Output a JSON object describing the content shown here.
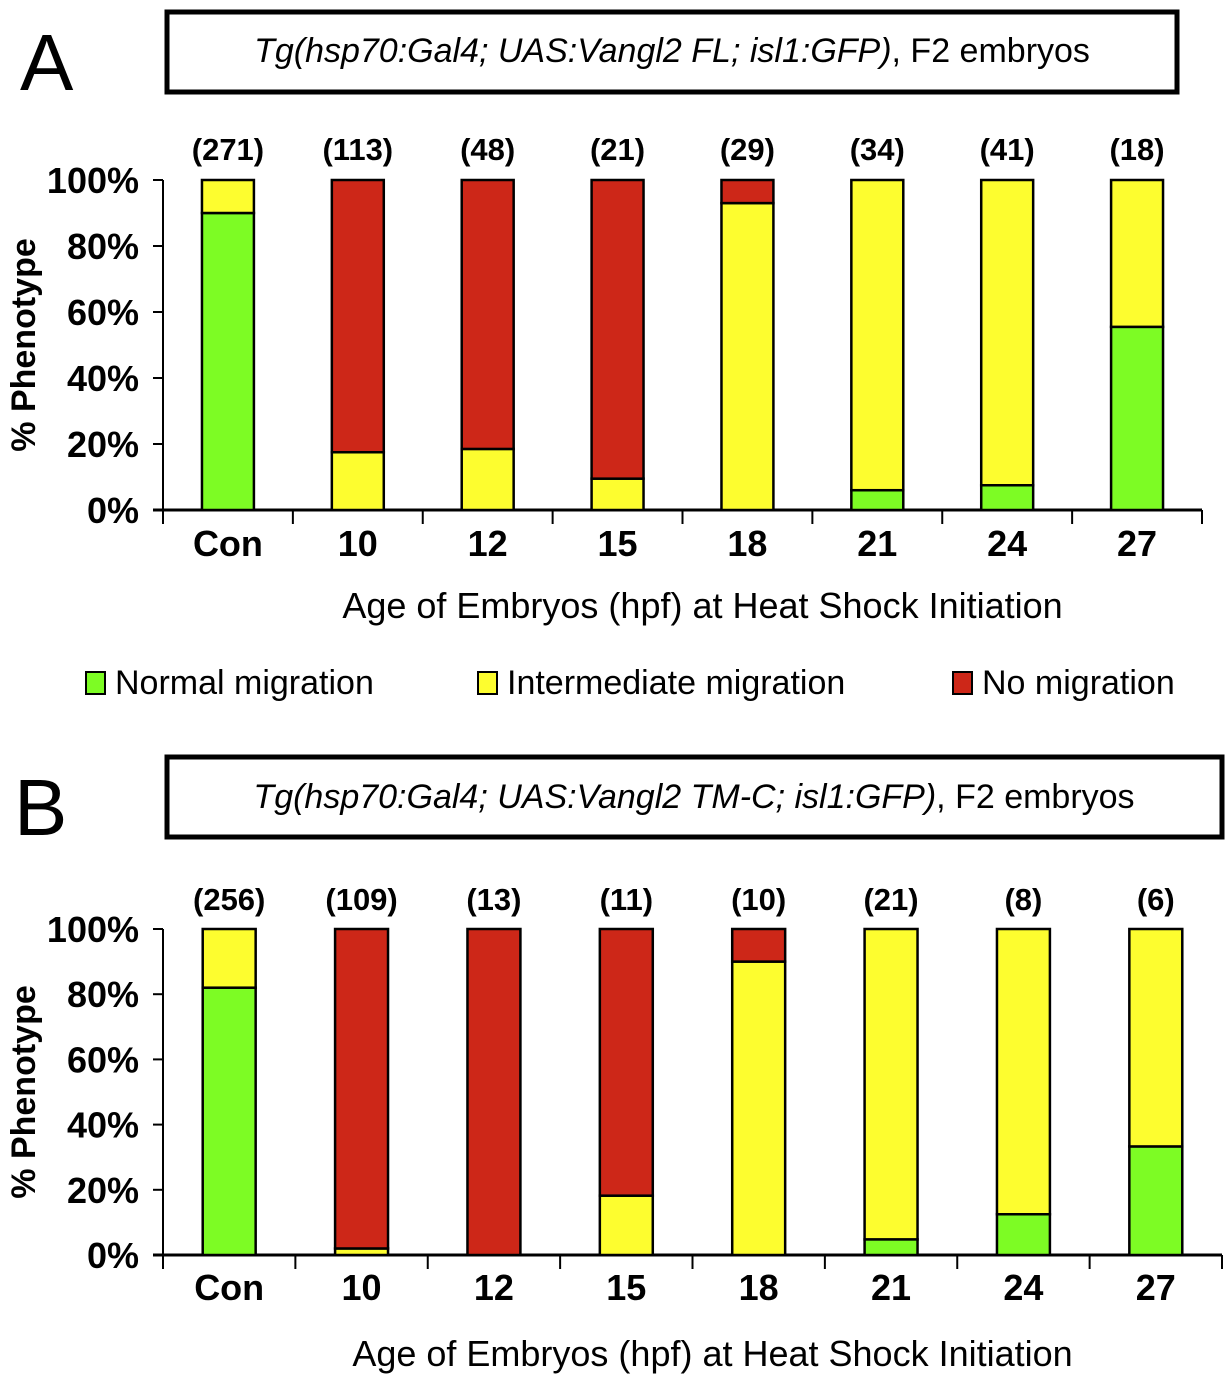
{
  "colors": {
    "normal": "#7dfc24",
    "intermediate": "#fdfd2f",
    "none": "#cd2718",
    "outline": "#000000"
  },
  "legend": {
    "items": [
      {
        "key": "normal",
        "label": "Normal migration"
      },
      {
        "key": "intermediate",
        "label": "Intermediate migration"
      },
      {
        "key": "none",
        "label": "No migration"
      }
    ]
  },
  "chart_data": [
    {
      "panel": "A",
      "type": "bar",
      "stacked": true,
      "title_italic": "Tg(hsp70:Gal4; UAS:Vangl2 FL; isl1:GFP)",
      "title_plain": ", F2 embryos",
      "xlabel": "Age of Embryos (hpf) at Heat Shock Initiation",
      "ylabel": "% Phenotype",
      "ylim": [
        0,
        100
      ],
      "yticks": [
        "0%",
        "20%",
        "40%",
        "60%",
        "80%",
        "100%"
      ],
      "grid": false,
      "categories": [
        "Con",
        "10",
        "12",
        "15",
        "18",
        "21",
        "24",
        "27"
      ],
      "n_labels": [
        "(271)",
        "(113)",
        "(48)",
        "(21)",
        "(29)",
        "(34)",
        "(41)",
        "(18)"
      ],
      "series": [
        {
          "name": "Normal migration",
          "key": "normal",
          "values": [
            90,
            0,
            0,
            0,
            0,
            6,
            7.5,
            55.5
          ]
        },
        {
          "name": "Intermediate migration",
          "key": "intermediate",
          "values": [
            10,
            17.5,
            18.5,
            9.5,
            93,
            94,
            92.5,
            44.5
          ]
        },
        {
          "name": "No migration",
          "key": "none",
          "values": [
            0,
            82.5,
            81.5,
            90.5,
            7,
            0,
            0,
            0
          ]
        }
      ],
      "legend": "bottom"
    },
    {
      "panel": "B",
      "type": "bar",
      "stacked": true,
      "title_italic": "Tg(hsp70:Gal4; UAS:Vangl2 TM-C; isl1:GFP)",
      "title_plain": ", F2 embryos",
      "xlabel": "Age of Embryos (hpf) at Heat Shock Initiation",
      "ylabel": "% Phenotype",
      "ylim": [
        0,
        100
      ],
      "yticks": [
        "0%",
        "20%",
        "40%",
        "60%",
        "80%",
        "100%"
      ],
      "grid": false,
      "categories": [
        "Con",
        "10",
        "12",
        "15",
        "18",
        "21",
        "24",
        "27"
      ],
      "n_labels": [
        "(256)",
        "(109)",
        "(13)",
        "(11)",
        "(10)",
        "(21)",
        "(8)",
        "(6)"
      ],
      "series": [
        {
          "name": "Normal migration",
          "key": "normal",
          "values": [
            82,
            0,
            0,
            0,
            0,
            4.8,
            12.5,
            33.3
          ]
        },
        {
          "name": "Intermediate migration",
          "key": "intermediate",
          "values": [
            18,
            2,
            0,
            18.2,
            90,
            95.2,
            87.5,
            66.7
          ]
        },
        {
          "name": "No migration",
          "key": "none",
          "values": [
            0,
            98,
            100,
            81.8,
            10,
            0,
            0,
            0
          ]
        }
      ]
    }
  ]
}
